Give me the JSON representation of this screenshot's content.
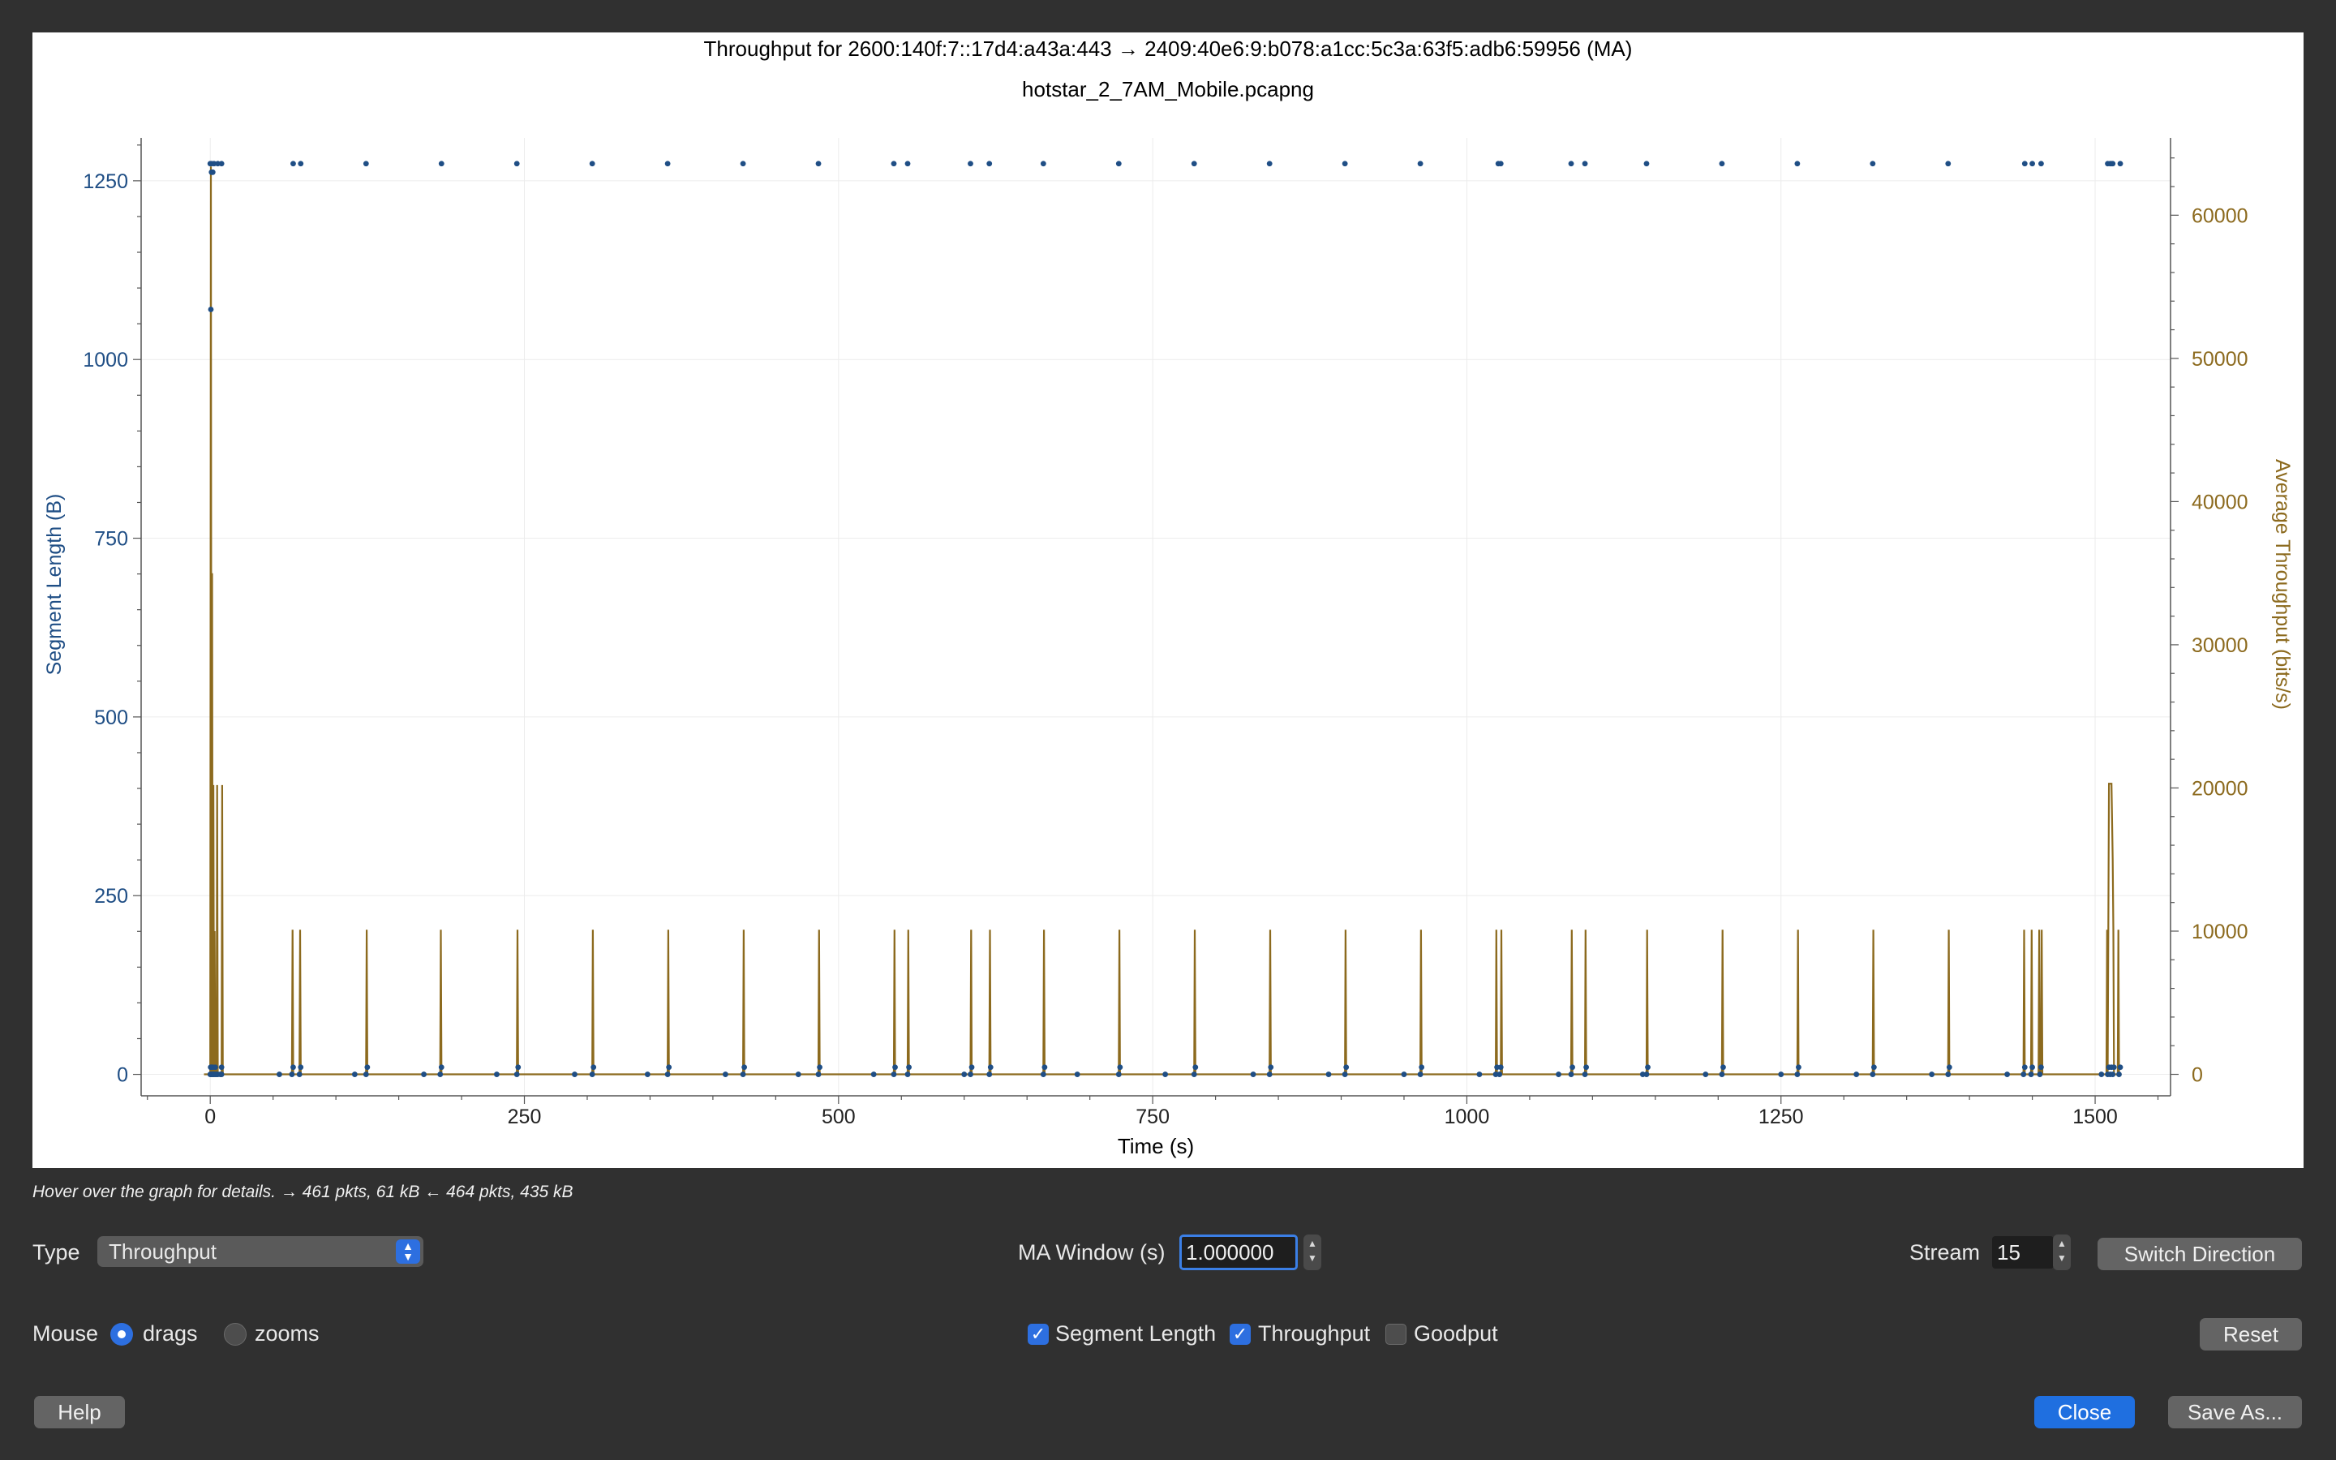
{
  "dialog": {
    "status_text": "Hover over the graph for details. → 461 pkts, 61 kB ← 464 pkts, 435 kB"
  },
  "controls": {
    "type_label": "Type",
    "type_value": "Throughput",
    "ma_window_label": "MA Window (s)",
    "ma_window_value": "1.000000",
    "stream_label": "Stream",
    "stream_value": "15",
    "switch_direction_label": "Switch Direction",
    "mouse_label": "Mouse",
    "mouse_options": [
      "drags",
      "zooms"
    ],
    "mouse_selected": "drags",
    "segment_length_label": "Segment Length",
    "segment_length_checked": true,
    "throughput_label": "Throughput",
    "throughput_checked": true,
    "goodput_label": "Goodput",
    "goodput_checked": false,
    "reset_label": "Reset",
    "help_label": "Help",
    "close_label": "Close",
    "save_as_label": "Save As..."
  },
  "colors": {
    "segment_series": "#1f4e85",
    "throughput_series": "#8c6a1e",
    "primary_button": "#1f6fe0",
    "dialog_background": "#303030"
  },
  "chart_data": {
    "type": "scatter",
    "title": "Throughput for 2600:140f:7::17d4:a43a:443 → 2409:40e6:9:b078:a1cc:5c3a:63f5:adb6:59956 (MA)",
    "subtitle": "hotstar_2_7AM_Mobile.pcapng",
    "xlabel": "Time (s)",
    "ylabel": "Segment Length (B)",
    "y2label": "Average Throughput (bits/s)",
    "xlim": [
      -55,
      1560
    ],
    "ylim": [
      -30,
      1310
    ],
    "y2lim": [
      -1500,
      65400
    ],
    "xticks": [
      0,
      250,
      500,
      750,
      1000,
      1250,
      1500
    ],
    "yticks": [
      0,
      250,
      500,
      750,
      1000,
      1250
    ],
    "y2ticks": [
      0,
      10000,
      20000,
      30000,
      40000,
      50000,
      60000
    ],
    "grid": true,
    "series": [
      {
        "name": "Segment Length",
        "axis": "left",
        "style": "points",
        "x": [
          0,
          0.5,
          1,
          1.5,
          2,
          2.5,
          3,
          4,
          5,
          6,
          8,
          9,
          0.3,
          0.8,
          1.2,
          2,
          4,
          9,
          65,
          66,
          71,
          72,
          124,
          125,
          183,
          184,
          244,
          245,
          304,
          305,
          364,
          365,
          424,
          425,
          484,
          485,
          544,
          545,
          555,
          556,
          605,
          606,
          620,
          621,
          663,
          664,
          723,
          724,
          783,
          784,
          843,
          844,
          903,
          904,
          963,
          964,
          1023,
          1024,
          1026,
          1027,
          1083,
          1084,
          1094,
          1095,
          1143,
          1144,
          1203,
          1204,
          1263,
          1264,
          1323,
          1324,
          1383,
          1384,
          1443,
          1444,
          1449,
          1450,
          1456,
          1457,
          1510,
          1511,
          1512,
          1513,
          1514,
          1515,
          1519,
          1520,
          55,
          115,
          170,
          228,
          290,
          348,
          410,
          468,
          528,
          600,
          690,
          760,
          830,
          890,
          950,
          1010,
          1073,
          1140,
          1190,
          1250,
          1310,
          1370,
          1430,
          1505,
          0,
          1,
          3,
          6,
          9,
          66,
          72,
          124,
          184,
          244,
          304,
          364,
          424,
          484,
          544,
          555,
          605,
          620,
          663,
          723,
          783,
          843,
          903,
          963,
          1025,
          1027,
          1083,
          1094,
          1143,
          1203,
          1263,
          1323,
          1383,
          1444,
          1450,
          1457,
          1510,
          1512,
          1513,
          1514,
          1520,
          1,
          2,
          0.5
        ],
        "y": [
          0,
          0,
          0,
          0,
          0,
          0,
          0,
          0,
          0,
          0,
          0,
          0,
          10,
          10,
          10,
          10,
          10,
          10,
          0,
          10,
          0,
          10,
          0,
          10,
          0,
          10,
          0,
          10,
          0,
          10,
          0,
          10,
          0,
          10,
          0,
          10,
          0,
          10,
          0,
          10,
          0,
          10,
          0,
          10,
          0,
          10,
          0,
          10,
          0,
          10,
          0,
          10,
          0,
          10,
          0,
          10,
          0,
          10,
          0,
          10,
          0,
          10,
          0,
          10,
          0,
          10,
          0,
          10,
          0,
          10,
          0,
          10,
          0,
          10,
          0,
          10,
          0,
          10,
          0,
          10,
          0,
          10,
          0,
          10,
          0,
          10,
          0,
          10,
          0,
          0,
          0,
          0,
          0,
          0,
          0,
          0,
          0,
          0,
          0,
          0,
          0,
          0,
          0,
          0,
          0,
          0,
          0,
          0,
          0,
          0,
          0,
          0,
          1274,
          1274,
          1274,
          1274,
          1274,
          1274,
          1274,
          1274,
          1274,
          1274,
          1274,
          1274,
          1274,
          1274,
          1274,
          1274,
          1274,
          1274,
          1274,
          1274,
          1274,
          1274,
          1274,
          1274,
          1274,
          1274,
          1274,
          1274,
          1274,
          1274,
          1274,
          1274,
          1274,
          1274,
          1274,
          1274,
          1274,
          1274,
          1274,
          1274,
          1274,
          1262,
          1262,
          1070
        ]
      },
      {
        "name": "Throughput",
        "axis": "right",
        "style": "line",
        "x": [
          -5,
          0,
          0.5,
          1,
          1.5,
          2,
          2.5,
          3,
          3.5,
          4,
          5,
          5.5,
          6,
          7,
          8,
          9,
          9.5,
          10,
          11,
          65,
          65.5,
          66,
          71,
          71.5,
          72,
          124,
          124.5,
          125,
          183,
          183.5,
          184,
          244,
          244.5,
          245,
          304,
          304.5,
          305,
          364,
          364.5,
          365,
          424,
          424.5,
          425,
          484,
          484.5,
          485,
          544,
          544.5,
          545,
          555,
          555.5,
          556,
          605,
          605.5,
          606,
          620,
          620.5,
          621,
          663,
          663.5,
          664,
          723,
          723.5,
          724,
          783,
          783.5,
          784,
          843,
          843.5,
          844,
          903,
          903.5,
          904,
          963,
          963.5,
          964,
          1023,
          1023.5,
          1024,
          1027,
          1027.5,
          1028,
          1083,
          1083.5,
          1084,
          1094,
          1094.5,
          1095,
          1143,
          1143.5,
          1144,
          1203,
          1203.5,
          1204,
          1263,
          1263.5,
          1264,
          1323,
          1323.5,
          1324,
          1383,
          1383.5,
          1384,
          1443,
          1443.5,
          1444,
          1449,
          1449.5,
          1450,
          1455,
          1455.5,
          1456,
          1457,
          1457.5,
          1458,
          1509,
          1509.5,
          1510,
          1511,
          1512,
          1513,
          1514,
          1514.5,
          1515,
          1518,
          1518.5,
          1519,
          1521
        ],
        "y": [
          0,
          0,
          63400,
          0,
          35000,
          0,
          20200,
          0,
          10000,
          0,
          0,
          20200,
          0,
          0,
          0,
          0,
          20200,
          0,
          0,
          0,
          10100,
          0,
          0,
          10100,
          0,
          0,
          10100,
          0,
          0,
          10100,
          0,
          0,
          10100,
          0,
          0,
          10100,
          0,
          0,
          10100,
          0,
          0,
          10100,
          0,
          0,
          10100,
          0,
          0,
          10100,
          0,
          0,
          10100,
          0,
          0,
          10100,
          0,
          0,
          10100,
          0,
          0,
          10100,
          0,
          0,
          10100,
          0,
          0,
          10100,
          0,
          0,
          10100,
          0,
          0,
          10100,
          0,
          0,
          10100,
          0,
          0,
          10100,
          0,
          0,
          10100,
          0,
          0,
          10100,
          0,
          0,
          10100,
          0,
          0,
          10100,
          0,
          0,
          10100,
          0,
          0,
          10100,
          0,
          0,
          10100,
          0,
          0,
          10100,
          0,
          0,
          10100,
          0,
          0,
          10100,
          0,
          0,
          10100,
          0,
          0,
          10100,
          0,
          0,
          10100,
          0,
          20300,
          20300,
          20300,
          15000,
          10100,
          0,
          0,
          10100,
          0,
          0
        ]
      }
    ]
  }
}
